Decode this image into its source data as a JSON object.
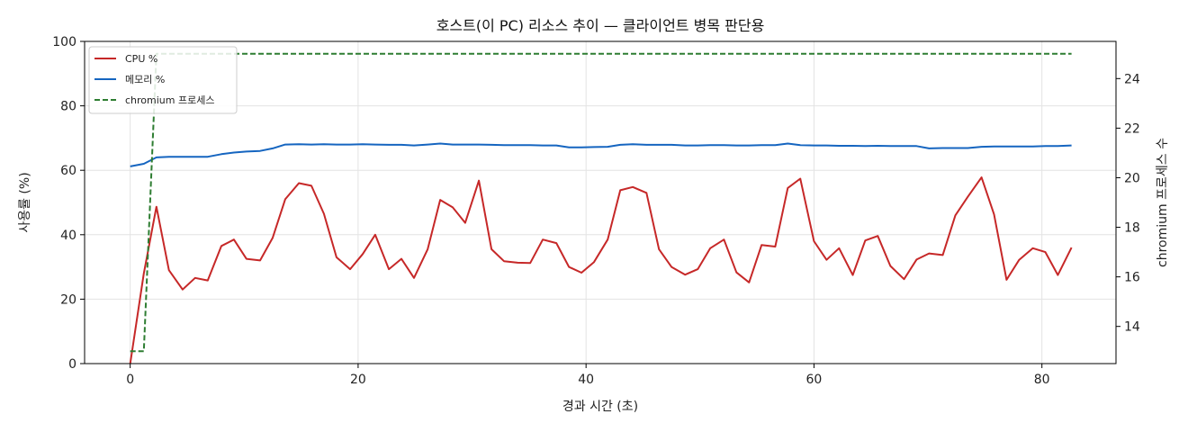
{
  "chart_data": {
    "type": "line",
    "title": "호스트(이 PC) 리소스 추이 — 클라이언트 병목 판단용",
    "xlabel": "경과 시간 (초)",
    "ylabel": "사용률 (%)",
    "y2label": "chromium 프로세스 수",
    "xlim": [
      -4,
      86.5
    ],
    "ylim": [
      0,
      100
    ],
    "y2lim": [
      12.5,
      25.5
    ],
    "xticks": [
      0,
      20,
      40,
      60,
      80
    ],
    "yticks": [
      0,
      20,
      40,
      60,
      80,
      100
    ],
    "y2ticks": [
      14,
      16,
      18,
      20,
      22,
      24
    ],
    "grid": true,
    "legend_position": "upper-left",
    "x": [
      0,
      1.2,
      2.3,
      3.4,
      4.6,
      5.7,
      6.8,
      8.0,
      9.1,
      10.2,
      11.4,
      12.5,
      13.6,
      14.8,
      15.9,
      17.0,
      18.1,
      19.3,
      20.4,
      21.5,
      22.7,
      23.8,
      24.9,
      26.1,
      27.2,
      28.3,
      29.4,
      30.6,
      31.7,
      32.8,
      34.0,
      35.1,
      36.2,
      37.4,
      38.5,
      39.6,
      40.7,
      41.9,
      43.0,
      44.1,
      45.3,
      46.4,
      47.5,
      48.7,
      49.8,
      50.9,
      52.1,
      53.2,
      54.3,
      55.4,
      56.6,
      57.7,
      58.8,
      60.0,
      61.1,
      62.2,
      63.4,
      64.5,
      65.6,
      66.7,
      67.9,
      69.0,
      70.1,
      71.3,
      72.4,
      73.5,
      74.7,
      75.8,
      76.9,
      78.0,
      79.2,
      80.3,
      81.4,
      82.6
    ],
    "series": [
      {
        "name": "CPU %",
        "axis": "left",
        "color": "#c62828",
        "style": "solid",
        "values": [
          0,
          28,
          48.7,
          29,
          23,
          26.6,
          25.8,
          36.5,
          38.5,
          32.5,
          32,
          39,
          51,
          56,
          55.2,
          46.5,
          33,
          29.3,
          34,
          40,
          29.3,
          32.5,
          26.6,
          35.5,
          50.8,
          48.5,
          43.7,
          56.8,
          35.5,
          31.8,
          31.3,
          31.2,
          38.5,
          37.4,
          30,
          28.2,
          31.5,
          38.5,
          53.8,
          54.8,
          53,
          35.5,
          30,
          27.6,
          29.3,
          35.8,
          38.5,
          28.3,
          25.2,
          36.8,
          36.3,
          54.5,
          57.4,
          38,
          32.2,
          35.8,
          27.5,
          38.2,
          39.6,
          30.3,
          26.2,
          32.3,
          34.2,
          33.7,
          46,
          51.8,
          57.8,
          46.3,
          26,
          32.2,
          35.8,
          34.6,
          27.5,
          36
        ]
      },
      {
        "name": "메모리 %",
        "axis": "left",
        "color": "#1565c0",
        "style": "solid",
        "values": [
          61.2,
          62,
          64,
          64.2,
          64.2,
          64.2,
          64.2,
          65,
          65.5,
          65.8,
          66,
          66.8,
          68,
          68.1,
          68,
          68.1,
          68,
          68,
          68.1,
          68,
          67.9,
          67.9,
          67.7,
          68,
          68.3,
          68,
          68,
          68,
          67.9,
          67.8,
          67.8,
          67.8,
          67.7,
          67.7,
          67.1,
          67.1,
          67.2,
          67.3,
          67.9,
          68.1,
          67.9,
          67.9,
          67.9,
          67.7,
          67.7,
          67.8,
          67.8,
          67.7,
          67.7,
          67.8,
          67.8,
          68.3,
          67.8,
          67.7,
          67.7,
          67.6,
          67.6,
          67.5,
          67.6,
          67.5,
          67.5,
          67.5,
          66.8,
          66.9,
          66.9,
          66.9,
          67.3,
          67.4,
          67.4,
          67.4,
          67.4,
          67.5,
          67.5,
          67.7
        ]
      },
      {
        "name": "chromium 프로세스",
        "axis": "right",
        "color": "#2e7d32",
        "style": "dashed",
        "x": [
          0,
          1.2,
          2.3,
          3.4,
          82.6
        ],
        "values": [
          13,
          13,
          25,
          25,
          25
        ]
      }
    ]
  }
}
